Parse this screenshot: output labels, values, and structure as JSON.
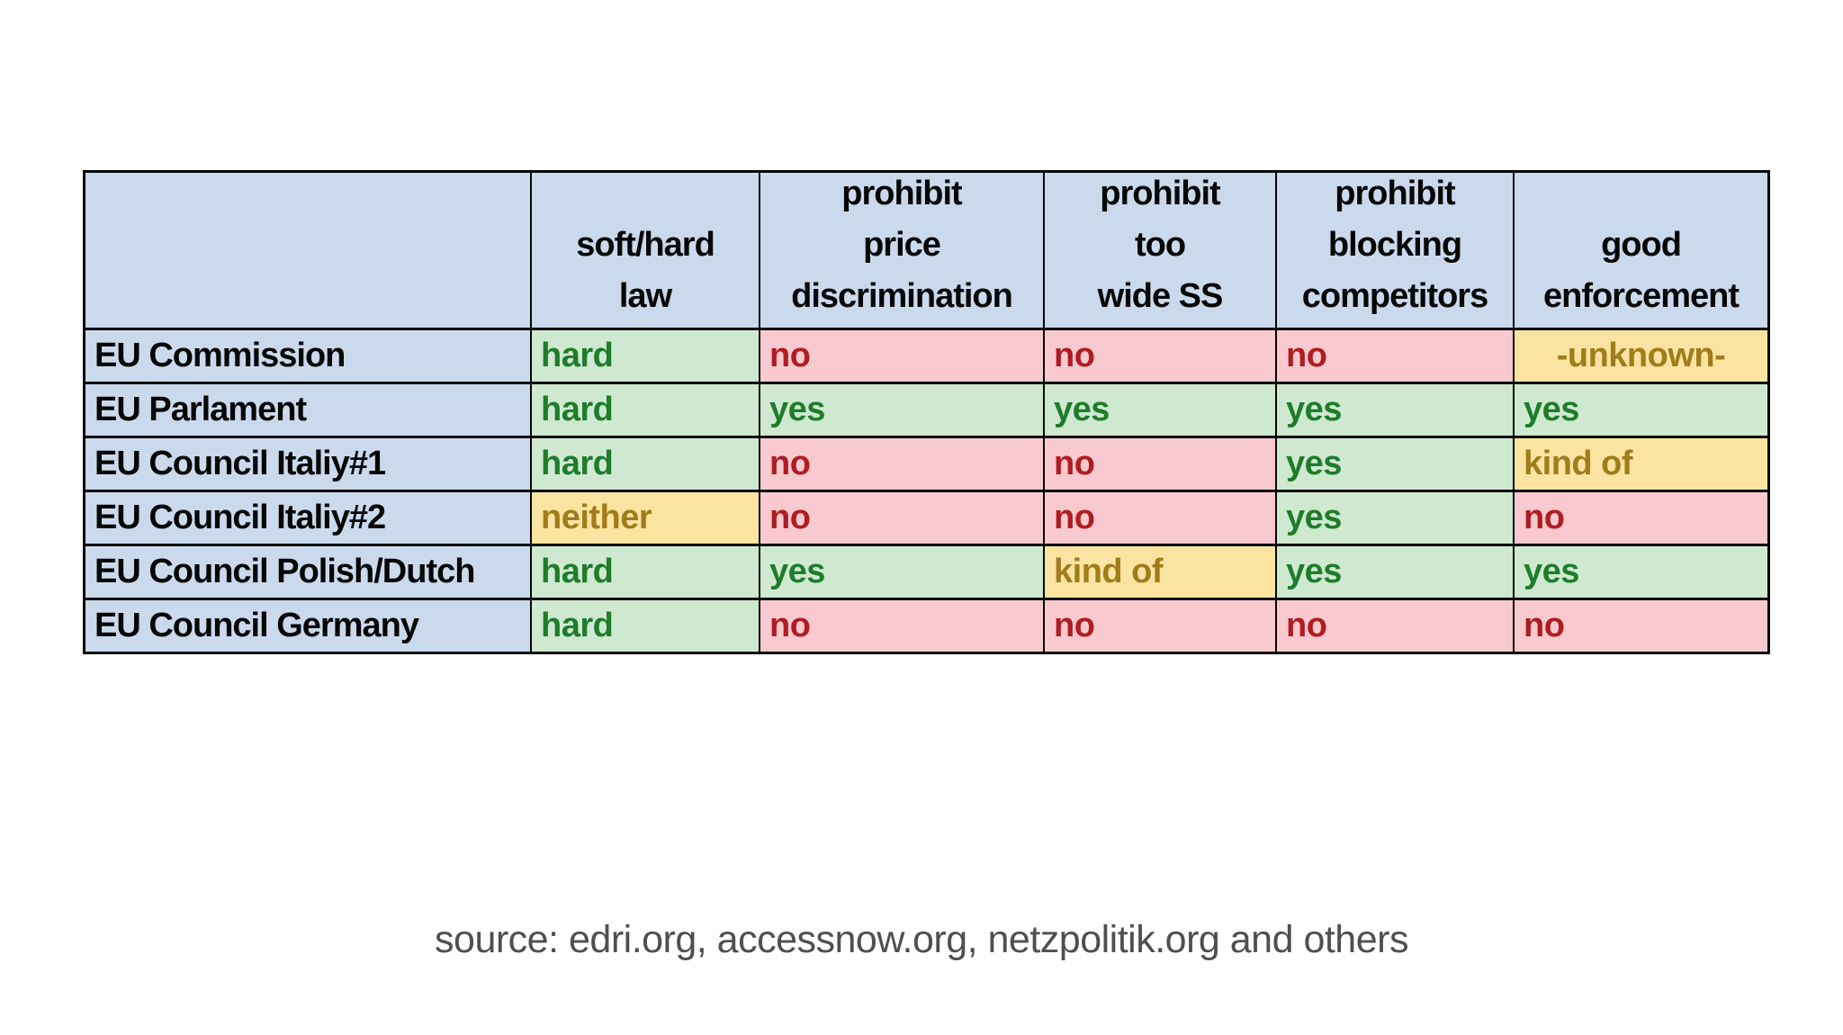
{
  "source_line": "source: edri.org, accessnow.org, netzpolitik.org and others",
  "table": {
    "corner_label": "",
    "columns": [
      "soft/hard\nlaw",
      "prohibit\nprice\ndiscrimination",
      "prohibit\ntoo\nwide SS",
      "prohibit\nblocking\ncompetitors",
      "good\nenforcement"
    ],
    "rows": [
      {
        "label": "EU Commission",
        "cells": [
          {
            "text": "hard",
            "status": "green"
          },
          {
            "text": "no",
            "status": "red"
          },
          {
            "text": "no",
            "status": "red"
          },
          {
            "text": "no",
            "status": "red"
          },
          {
            "text": "-unknown-",
            "status": "yellow",
            "align": "center"
          }
        ]
      },
      {
        "label": "EU Parlament",
        "cells": [
          {
            "text": "hard",
            "status": "green"
          },
          {
            "text": "yes",
            "status": "green"
          },
          {
            "text": "yes",
            "status": "green"
          },
          {
            "text": "yes",
            "status": "green"
          },
          {
            "text": "yes",
            "status": "green"
          }
        ]
      },
      {
        "label": "EU Council Italiy#1",
        "cells": [
          {
            "text": "hard",
            "status": "green"
          },
          {
            "text": "no",
            "status": "red"
          },
          {
            "text": "no",
            "status": "red"
          },
          {
            "text": "yes",
            "status": "green"
          },
          {
            "text": "kind of",
            "status": "yellow"
          }
        ]
      },
      {
        "label": "EU Council Italiy#2",
        "cells": [
          {
            "text": "neither",
            "status": "yellow"
          },
          {
            "text": "no",
            "status": "red"
          },
          {
            "text": "no",
            "status": "red"
          },
          {
            "text": "yes",
            "status": "green"
          },
          {
            "text": "no",
            "status": "red"
          }
        ]
      },
      {
        "label": "EU Council Polish/Dutch",
        "cells": [
          {
            "text": "hard",
            "status": "green"
          },
          {
            "text": "yes",
            "status": "green"
          },
          {
            "text": "kind of",
            "status": "yellow"
          },
          {
            "text": "yes",
            "status": "green"
          },
          {
            "text": "yes",
            "status": "green"
          }
        ]
      },
      {
        "label": "EU Council Germany",
        "cells": [
          {
            "text": "hard",
            "status": "green"
          },
          {
            "text": "no",
            "status": "red"
          },
          {
            "text": "no",
            "status": "red"
          },
          {
            "text": "no",
            "status": "red"
          },
          {
            "text": "no",
            "status": "red"
          }
        ]
      }
    ]
  },
  "colors": {
    "header_blue": "#cbd9ed",
    "green_bg": "#cfe9d1",
    "red_bg": "#f8c9ce",
    "yellow_bg": "#fbe3a1",
    "green_text": "#1e7c2a",
    "red_text": "#b01c22",
    "yellow_text": "#a07c1b",
    "border": "#060606",
    "source_text": "#4f4f4f",
    "page_background": "#ffffff"
  },
  "chart_data": {
    "type": "table",
    "title": "",
    "columns": [
      "",
      "soft/hard law",
      "prohibit price discrimination",
      "prohibit too wide SS",
      "prohibit blocking competitors",
      "good enforcement"
    ],
    "rows": [
      [
        "EU Commission",
        "hard",
        "no",
        "no",
        "no",
        "-unknown-"
      ],
      [
        "EU Parlament",
        "hard",
        "yes",
        "yes",
        "yes",
        "yes"
      ],
      [
        "EU Council Italiy#1",
        "hard",
        "no",
        "no",
        "yes",
        "kind of"
      ],
      [
        "EU Council Italiy#2",
        "neither",
        "no",
        "no",
        "yes",
        "no"
      ],
      [
        "EU Council Polish/Dutch",
        "hard",
        "yes",
        "kind of",
        "yes",
        "yes"
      ],
      [
        "EU Council Germany",
        "hard",
        "no",
        "no",
        "no",
        "no"
      ]
    ],
    "cell_status": [
      [
        "header",
        "green",
        "red",
        "red",
        "red",
        "yellow"
      ],
      [
        "header",
        "green",
        "green",
        "green",
        "green",
        "green"
      ],
      [
        "header",
        "green",
        "red",
        "red",
        "green",
        "yellow"
      ],
      [
        "header",
        "yellow",
        "red",
        "red",
        "green",
        "red"
      ],
      [
        "header",
        "green",
        "green",
        "yellow",
        "green",
        "green"
      ],
      [
        "header",
        "green",
        "red",
        "red",
        "red",
        "red"
      ]
    ],
    "status_meaning": {
      "green": "positive",
      "red": "negative",
      "yellow": "partial or unknown"
    },
    "caption": "source: edri.org, accessnow.org, netzpolitik.org and others",
    "grid": true,
    "legend_position": "none"
  }
}
